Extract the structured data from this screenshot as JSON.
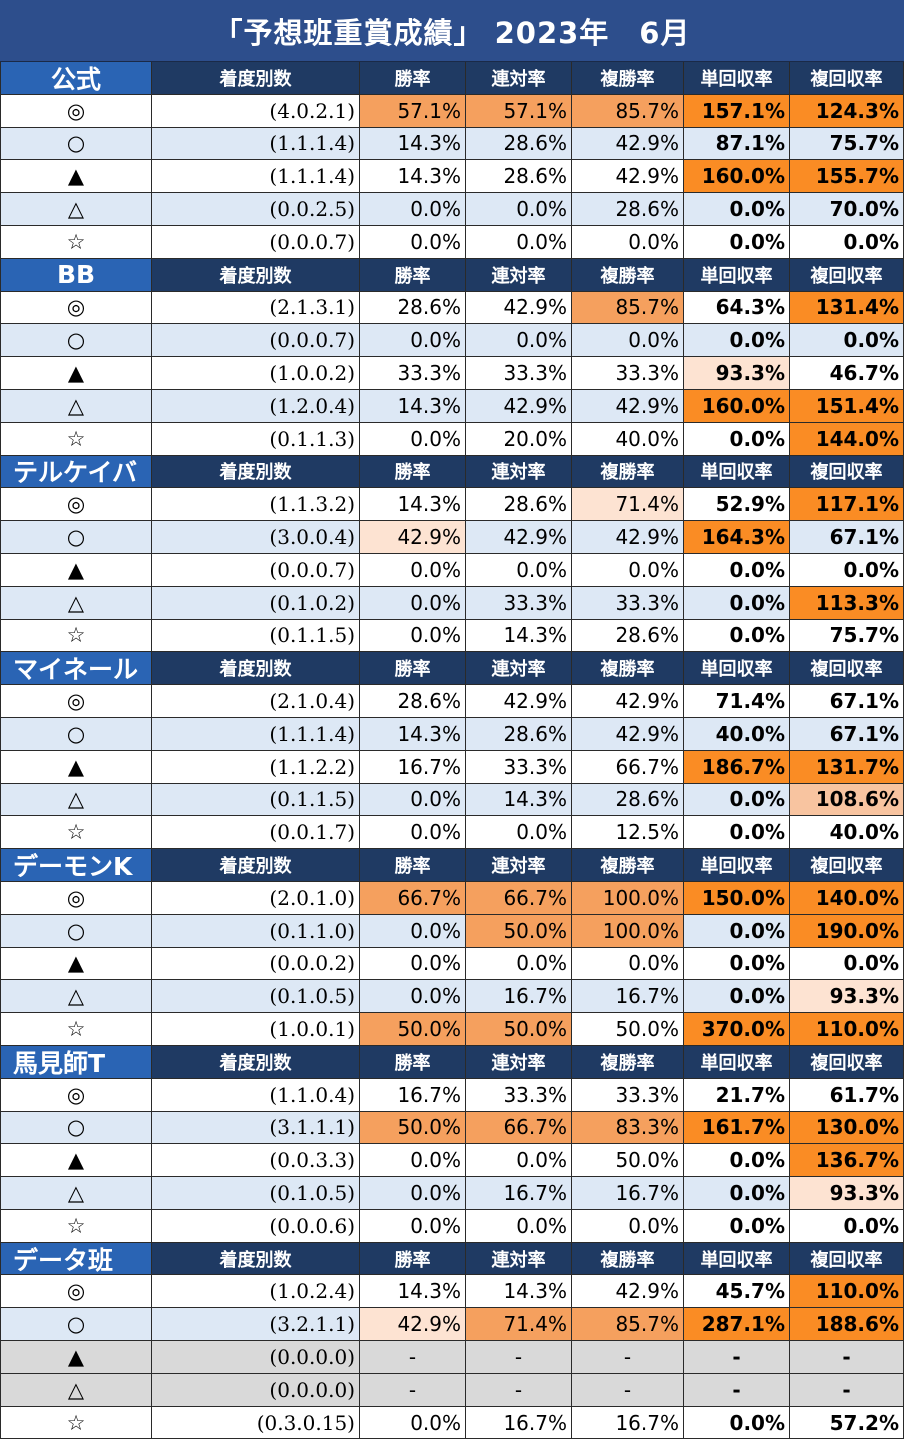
{
  "title": "「予想班重賞成績」 2023年　6月",
  "headers": [
    "着度別数",
    "勝率",
    "連対率",
    "複勝率",
    "単回収率",
    "複回収率"
  ],
  "groups": [
    {
      "name": "公式",
      "rows": [
        {
          "mark": "◎",
          "record": "(4.0.2.1)",
          "win": "57.1%",
          "place2": "57.1%",
          "place3": "85.7%",
          "roi_win": "157.1%",
          "roi_place": "124.3%"
        },
        {
          "mark": "○",
          "record": "(1.1.1.4)",
          "win": "14.3%",
          "place2": "28.6%",
          "place3": "42.9%",
          "roi_win": "87.1%",
          "roi_place": "75.7%"
        },
        {
          "mark": "▲",
          "record": "(1.1.1.4)",
          "win": "14.3%",
          "place2": "28.6%",
          "place3": "42.9%",
          "roi_win": "160.0%",
          "roi_place": "155.7%"
        },
        {
          "mark": "△",
          "record": "(0.0.2.5)",
          "win": "0.0%",
          "place2": "0.0%",
          "place3": "28.6%",
          "roi_win": "0.0%",
          "roi_place": "70.0%"
        },
        {
          "mark": "☆",
          "record": "(0.0.0.7)",
          "win": "0.0%",
          "place2": "0.0%",
          "place3": "0.0%",
          "roi_win": "0.0%",
          "roi_place": "0.0%"
        }
      ]
    },
    {
      "name": "BB",
      "rows": [
        {
          "mark": "◎",
          "record": "(2.1.3.1)",
          "win": "28.6%",
          "place2": "42.9%",
          "place3": "85.7%",
          "roi_win": "64.3%",
          "roi_place": "131.4%"
        },
        {
          "mark": "○",
          "record": "(0.0.0.7)",
          "win": "0.0%",
          "place2": "0.0%",
          "place3": "0.0%",
          "roi_win": "0.0%",
          "roi_place": "0.0%"
        },
        {
          "mark": "▲",
          "record": "(1.0.0.2)",
          "win": "33.3%",
          "place2": "33.3%",
          "place3": "33.3%",
          "roi_win": "93.3%",
          "roi_place": "46.7%"
        },
        {
          "mark": "△",
          "record": "(1.2.0.4)",
          "win": "14.3%",
          "place2": "42.9%",
          "place3": "42.9%",
          "roi_win": "160.0%",
          "roi_place": "151.4%"
        },
        {
          "mark": "☆",
          "record": "(0.1.1.3)",
          "win": "0.0%",
          "place2": "20.0%",
          "place3": "40.0%",
          "roi_win": "0.0%",
          "roi_place": "144.0%"
        }
      ]
    },
    {
      "name": "テルケイバ",
      "rows": [
        {
          "mark": "◎",
          "record": "(1.1.3.2)",
          "win": "14.3%",
          "place2": "28.6%",
          "place3": "71.4%",
          "roi_win": "52.9%",
          "roi_place": "117.1%"
        },
        {
          "mark": "○",
          "record": "(3.0.0.4)",
          "win": "42.9%",
          "place2": "42.9%",
          "place3": "42.9%",
          "roi_win": "164.3%",
          "roi_place": "67.1%"
        },
        {
          "mark": "▲",
          "record": "(0.0.0.7)",
          "win": "0.0%",
          "place2": "0.0%",
          "place3": "0.0%",
          "roi_win": "0.0%",
          "roi_place": "0.0%"
        },
        {
          "mark": "△",
          "record": "(0.1.0.2)",
          "win": "0.0%",
          "place2": "33.3%",
          "place3": "33.3%",
          "roi_win": "0.0%",
          "roi_place": "113.3%"
        },
        {
          "mark": "☆",
          "record": "(0.1.1.5)",
          "win": "0.0%",
          "place2": "14.3%",
          "place3": "28.6%",
          "roi_win": "0.0%",
          "roi_place": "75.7%"
        }
      ]
    },
    {
      "name": "マイネール",
      "rows": [
        {
          "mark": "◎",
          "record": "(2.1.0.4)",
          "win": "28.6%",
          "place2": "42.9%",
          "place3": "42.9%",
          "roi_win": "71.4%",
          "roi_place": "67.1%"
        },
        {
          "mark": "○",
          "record": "(1.1.1.4)",
          "win": "14.3%",
          "place2": "28.6%",
          "place3": "42.9%",
          "roi_win": "40.0%",
          "roi_place": "67.1%"
        },
        {
          "mark": "▲",
          "record": "(1.1.2.2)",
          "win": "16.7%",
          "place2": "33.3%",
          "place3": "66.7%",
          "roi_win": "186.7%",
          "roi_place": "131.7%"
        },
        {
          "mark": "△",
          "record": "(0.1.1.5)",
          "win": "0.0%",
          "place2": "14.3%",
          "place3": "28.6%",
          "roi_win": "0.0%",
          "roi_place": "108.6%"
        },
        {
          "mark": "☆",
          "record": "(0.0.1.7)",
          "win": "0.0%",
          "place2": "0.0%",
          "place3": "12.5%",
          "roi_win": "0.0%",
          "roi_place": "40.0%"
        }
      ]
    },
    {
      "name": "デーモンK",
      "rows": [
        {
          "mark": "◎",
          "record": "(2.0.1.0)",
          "win": "66.7%",
          "place2": "66.7%",
          "place3": "100.0%",
          "roi_win": "150.0%",
          "roi_place": "140.0%"
        },
        {
          "mark": "○",
          "record": "(0.1.1.0)",
          "win": "0.0%",
          "place2": "50.0%",
          "place3": "100.0%",
          "roi_win": "0.0%",
          "roi_place": "190.0%"
        },
        {
          "mark": "▲",
          "record": "(0.0.0.2)",
          "win": "0.0%",
          "place2": "0.0%",
          "place3": "0.0%",
          "roi_win": "0.0%",
          "roi_place": "0.0%"
        },
        {
          "mark": "△",
          "record": "(0.1.0.5)",
          "win": "0.0%",
          "place2": "16.7%",
          "place3": "16.7%",
          "roi_win": "0.0%",
          "roi_place": "93.3%"
        },
        {
          "mark": "☆",
          "record": "(1.0.0.1)",
          "win": "50.0%",
          "place2": "50.0%",
          "place3": "50.0%",
          "roi_win": "370.0%",
          "roi_place": "110.0%"
        }
      ]
    },
    {
      "name": "馬見師T",
      "rows": [
        {
          "mark": "◎",
          "record": "(1.1.0.4)",
          "win": "16.7%",
          "place2": "33.3%",
          "place3": "33.3%",
          "roi_win": "21.7%",
          "roi_place": "61.7%"
        },
        {
          "mark": "○",
          "record": "(3.1.1.1)",
          "win": "50.0%",
          "place2": "66.7%",
          "place3": "83.3%",
          "roi_win": "161.7%",
          "roi_place": "130.0%"
        },
        {
          "mark": "▲",
          "record": "(0.0.3.3)",
          "win": "0.0%",
          "place2": "0.0%",
          "place3": "50.0%",
          "roi_win": "0.0%",
          "roi_place": "136.7%"
        },
        {
          "mark": "△",
          "record": "(0.1.0.5)",
          "win": "0.0%",
          "place2": "16.7%",
          "place3": "16.7%",
          "roi_win": "0.0%",
          "roi_place": "93.3%"
        },
        {
          "mark": "☆",
          "record": "(0.0.0.6)",
          "win": "0.0%",
          "place2": "0.0%",
          "place3": "0.0%",
          "roi_win": "0.0%",
          "roi_place": "0.0%"
        }
      ]
    },
    {
      "name": "データ班",
      "rows": [
        {
          "mark": "◎",
          "record": "(1.0.2.4)",
          "win": "14.3%",
          "place2": "14.3%",
          "place3": "42.9%",
          "roi_win": "45.7%",
          "roi_place": "110.0%"
        },
        {
          "mark": "○",
          "record": "(3.2.1.1)",
          "win": "42.9%",
          "place2": "71.4%",
          "place3": "85.7%",
          "roi_win": "287.1%",
          "roi_place": "188.6%"
        },
        {
          "mark": "▲",
          "record": "(0.0.0.0)",
          "win": "-",
          "place2": "-",
          "place3": "-",
          "roi_win": "-",
          "roi_place": "-"
        },
        {
          "mark": "△",
          "record": "(0.0.0.0)",
          "win": "-",
          "place2": "-",
          "place3": "-",
          "roi_win": "-",
          "roi_place": "-"
        },
        {
          "mark": "☆",
          "record": "(0.3.0.15)",
          "win": "0.0%",
          "place2": "16.7%",
          "place3": "16.7%",
          "roi_win": "0.0%",
          "roi_place": "57.2%"
        }
      ]
    }
  ],
  "highlights": {
    "0": {
      "0": {
        "win": "orange",
        "place2": "orange",
        "place3": "orange",
        "roi_win": "strong",
        "roi_place": "strong"
      },
      "2": {
        "roi_win": "strong",
        "roi_place": "strong"
      }
    },
    "1": {
      "0": {
        "place3": "orange",
        "roi_place": "strong"
      },
      "2": {
        "roi_win": "light"
      },
      "3": {
        "roi_win": "strong",
        "roi_place": "strong"
      },
      "4": {
        "roi_place": "strong"
      }
    },
    "2": {
      "0": {
        "place3": "light",
        "roi_place": "strong"
      },
      "1": {
        "win": "light",
        "roi_win": "strong"
      },
      "3": {
        "roi_place": "strong"
      }
    },
    "3": {
      "2": {
        "roi_win": "strong",
        "roi_place": "strong"
      },
      "3": {
        "roi_place": "peach"
      }
    },
    "4": {
      "0": {
        "win": "orange",
        "place2": "orange",
        "place3": "orange",
        "roi_win": "strong",
        "roi_place": "strong"
      },
      "1": {
        "place2": "orange",
        "place3": "orange",
        "roi_place": "strong"
      },
      "3": {
        "roi_place": "light"
      },
      "4": {
        "win": "orange",
        "place2": "orange",
        "roi_win": "strong",
        "roi_place": "strong"
      }
    },
    "5": {
      "1": {
        "win": "orange",
        "place2": "orange",
        "place3": "orange",
        "roi_win": "strong",
        "roi_place": "strong"
      },
      "2": {
        "roi_place": "strong"
      },
      "3": {
        "roi_place": "light"
      }
    },
    "6": {
      "0": {
        "roi_place": "strong"
      },
      "1": {
        "win": "light",
        "place2": "orange",
        "place3": "orange",
        "roi_win": "strong",
        "roi_place": "strong"
      }
    },
    "gray_rows": {
      "6": [
        2,
        3
      ]
    }
  }
}
